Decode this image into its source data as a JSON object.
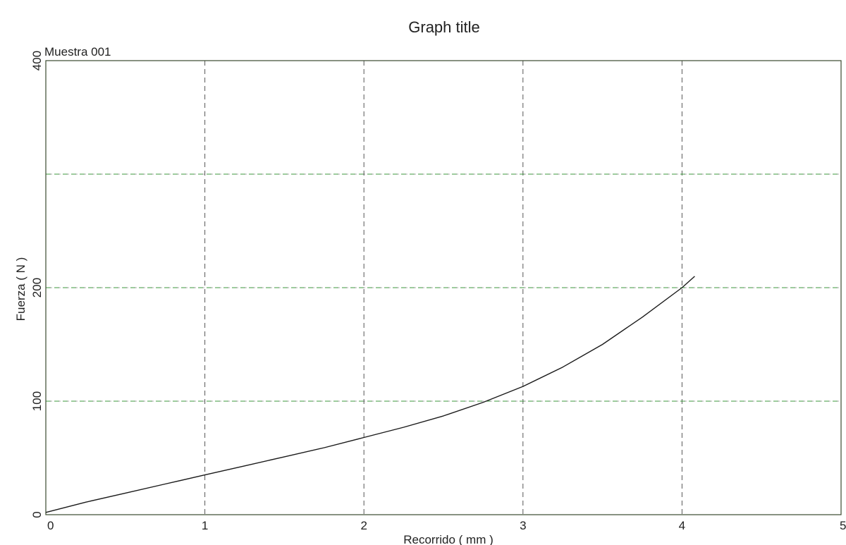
{
  "chart_data": {
    "type": "line",
    "title": "Graph title",
    "sample_label": "Muestra 001",
    "xlabel": "Recorrido ( mm )",
    "ylabel": "Fuerza ( N )",
    "xlim": [
      0,
      5
    ],
    "ylim": [
      0,
      400
    ],
    "x_ticks": [
      "0",
      "1",
      "2",
      "3",
      "4",
      "5"
    ],
    "y_ticks": [
      "0",
      "100",
      "200",
      "",
      "400"
    ],
    "grid": true,
    "series": [
      {
        "x": [
          0,
          0.25,
          0.5,
          0.75,
          1.0,
          1.25,
          1.5,
          1.75,
          2.0,
          2.25,
          2.5,
          2.75,
          3.0,
          3.25,
          3.5,
          3.75,
          4.0,
          4.08
        ],
        "y": [
          2,
          11,
          19,
          27,
          35,
          43,
          51,
          59,
          68,
          77,
          87,
          99,
          113,
          130,
          150,
          174,
          200,
          210
        ]
      }
    ],
    "colors": {
      "curve": "#1a1a1a",
      "axis": "#3a4a2e",
      "grid_vertical": "#555555",
      "grid_horizontal_green": "#3b9a3b",
      "grid_horizontal_dark": "#555555"
    }
  }
}
